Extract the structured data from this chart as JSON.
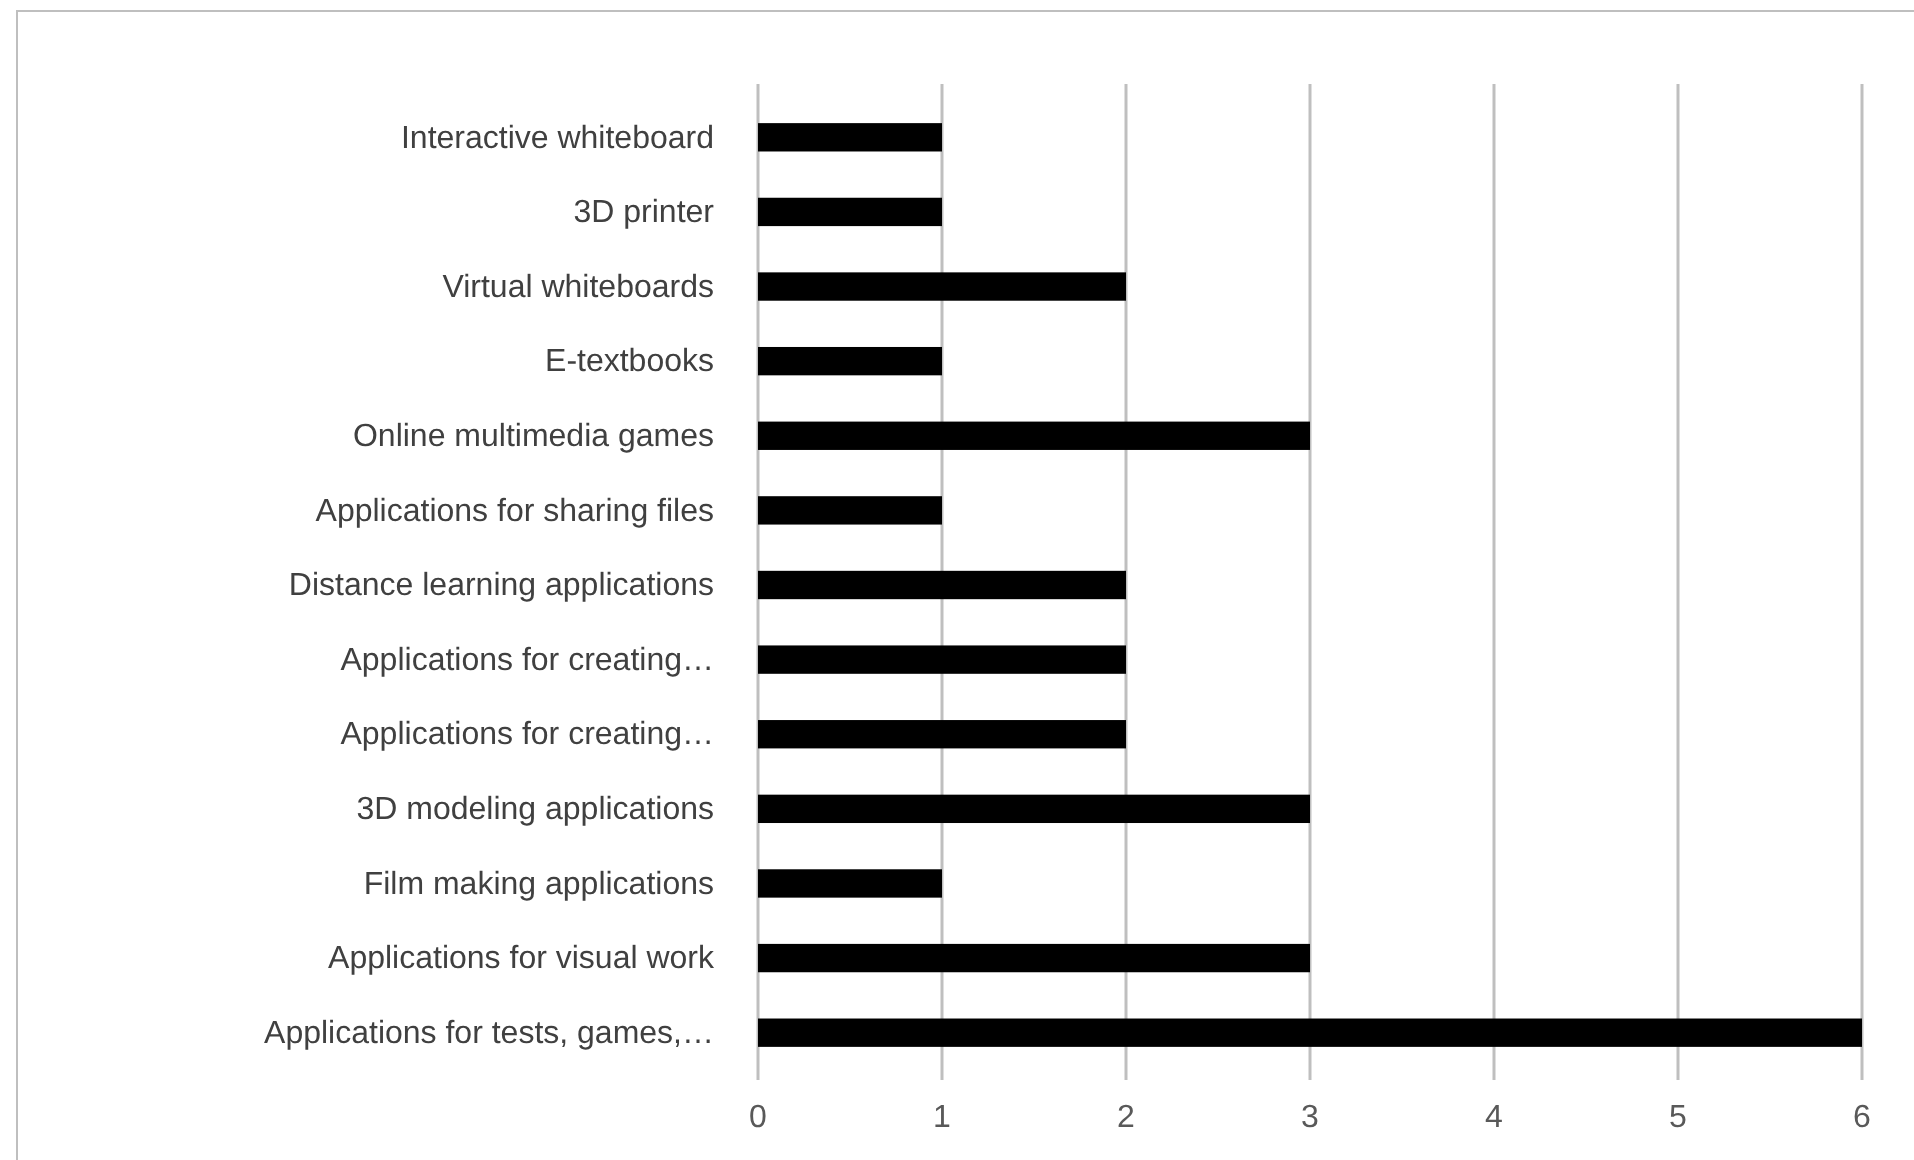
{
  "chart_data": {
    "type": "bar",
    "orientation": "horizontal",
    "categories": [
      "Interactive whiteboard",
      "3D printer",
      "Virtual whiteboards",
      "E-textbooks",
      "Online multimedia games",
      "Applications for sharing files",
      "Distance learning applications",
      "Applications for creating…",
      "Applications for creating…",
      "3D modeling applications",
      "Film making applications",
      "Applications for visual work",
      "Applications for tests, games,…"
    ],
    "values": [
      1,
      1,
      2,
      1,
      3,
      1,
      2,
      2,
      2,
      3,
      1,
      3,
      6
    ],
    "color": "#000000",
    "xlim": [
      0,
      6
    ],
    "xticks": [
      0,
      1,
      2,
      3,
      4,
      5,
      6
    ],
    "grid": "x"
  }
}
